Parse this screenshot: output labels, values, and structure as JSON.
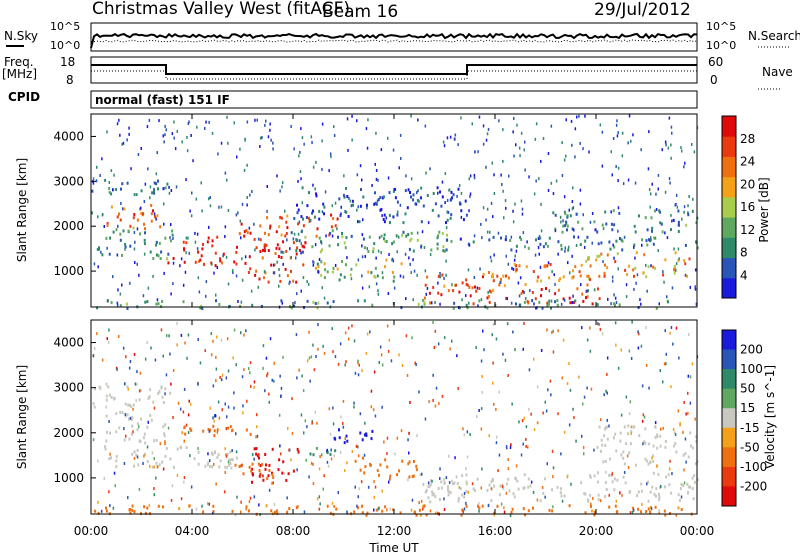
{
  "header": {
    "title": "Christmas Valley West (fitACF)",
    "beam": "Beam 16",
    "date": "29/Jul/2012"
  },
  "sky_panel": {
    "left_label": "N.Sky",
    "right_label": "N.Search",
    "left_ticks": [
      "10^5",
      "10^0"
    ],
    "right_ticks": [
      "10^5",
      "10^0"
    ]
  },
  "freq_panel": {
    "left_label_line1": "Freq.",
    "left_label_line2": "[MHz]",
    "right_label": "Nave",
    "left_ticks": [
      "18",
      "8"
    ],
    "right_ticks": [
      "60",
      "0"
    ]
  },
  "cpid_panel": {
    "label": "CPID",
    "mode_text": "normal (fast) 151 IF"
  },
  "colors": {
    "power_scale": [
      "#1a1adc",
      "#2a55b8",
      "#2f8a6a",
      "#5fa860",
      "#a8cc4c",
      "#f4a018",
      "#f07010",
      "#ec3a10",
      "#e00a0a"
    ],
    "velocity_scale": [
      "#1a1adc",
      "#2a55b8",
      "#2f8a6a",
      "#5fa860",
      "#c8c8c0",
      "#f4a018",
      "#f07010",
      "#ec3a10",
      "#e00a0a"
    ]
  },
  "chart_data": [
    {
      "type": "heatmap",
      "quantity": "power",
      "xlabel": "",
      "ylabel": "Slant Range [km]",
      "x_ticks": [
        "00:00",
        "04:00",
        "08:00",
        "12:00",
        "16:00",
        "20:00",
        "00:00"
      ],
      "y_ticks": [
        1000,
        2000,
        3000,
        4000
      ],
      "ylim": [
        200,
        4500
      ],
      "colorbar_label": "Power [dB]",
      "colorbar_ticks": [
        4,
        8,
        12,
        16,
        20,
        24,
        28
      ],
      "regions": [
        {
          "t0": 0.0,
          "t1": 3.0,
          "r0": 2700,
          "r1": 3100,
          "level": 0.25
        },
        {
          "t0": 0.6,
          "t1": 2.8,
          "r0": 1900,
          "r1": 2500,
          "level": 0.75
        },
        {
          "t0": 3.0,
          "t1": 8.5,
          "r0": 1150,
          "r1": 1800,
          "level": 0.9
        },
        {
          "t0": 5.8,
          "t1": 9.8,
          "r0": 1800,
          "r1": 2300,
          "level": 0.82
        },
        {
          "t0": 6.2,
          "t1": 8.3,
          "r0": 700,
          "r1": 1100,
          "level": 0.88
        },
        {
          "t0": 0.2,
          "t1": 3.2,
          "r0": 1300,
          "r1": 2000,
          "level": 0.3
        },
        {
          "t0": 7.5,
          "t1": 14.5,
          "r0": 1450,
          "r1": 1950,
          "level": 0.35
        },
        {
          "t0": 8.8,
          "t1": 12.5,
          "r0": 800,
          "r1": 1300,
          "level": 0.45
        },
        {
          "t0": 13.0,
          "t1": 16.5,
          "r0": 300,
          "r1": 950,
          "level": 0.78
        },
        {
          "t0": 15.5,
          "t1": 20.0,
          "r0": 700,
          "r1": 1200,
          "level": 0.72
        },
        {
          "t0": 17.0,
          "t1": 20.2,
          "r0": 300,
          "r1": 750,
          "level": 0.85
        },
        {
          "t0": 19.5,
          "t1": 23.8,
          "r0": 900,
          "r1": 1450,
          "level": 0.65
        },
        {
          "t0": 14.0,
          "t1": 24.0,
          "r0": 1500,
          "r1": 1800,
          "level": 0.25
        },
        {
          "t0": 18.0,
          "t1": 24.0,
          "r0": 1900,
          "r1": 2400,
          "level": 0.28
        },
        {
          "t0": 8.0,
          "t1": 15.0,
          "r0": 2100,
          "r1": 2900,
          "level": 0.15
        },
        {
          "t0": 0.0,
          "t1": 24.0,
          "r0": 200,
          "r1": 380,
          "level": 0.3
        }
      ]
    },
    {
      "type": "heatmap",
      "quantity": "velocity",
      "xlabel": "Time UT",
      "ylabel": "Slant Range [km]",
      "x_ticks": [
        "00:00",
        "04:00",
        "08:00",
        "12:00",
        "16:00",
        "20:00",
        "00:00"
      ],
      "y_ticks": [
        1000,
        2000,
        3000,
        4000
      ],
      "ylim": [
        200,
        4500
      ],
      "colorbar_label": "Velocity [m s^-1]",
      "colorbar_ticks": [
        200,
        100,
        50,
        15,
        -15,
        -50,
        -100,
        -200
      ],
      "regions": [
        {
          "t0": 0.0,
          "t1": 3.2,
          "r0": 2600,
          "r1": 3150,
          "v": 0
        },
        {
          "t0": 0.5,
          "t1": 3.0,
          "r0": 1800,
          "r1": 2500,
          "v": 0
        },
        {
          "t0": 0.5,
          "t1": 5.8,
          "r0": 1250,
          "r1": 1750,
          "v": 0
        },
        {
          "t0": 3.5,
          "t1": 6.5,
          "r0": 1900,
          "r1": 2200,
          "v": -60
        },
        {
          "t0": 6.3,
          "t1": 8.2,
          "r0": 900,
          "r1": 1700,
          "v": -180
        },
        {
          "t0": 5.5,
          "t1": 7.5,
          "r0": 1000,
          "r1": 1350,
          "v": -70
        },
        {
          "t0": 10.3,
          "t1": 13.0,
          "r0": 1050,
          "r1": 1500,
          "v": -75
        },
        {
          "t0": 9.6,
          "t1": 11.4,
          "r0": 1800,
          "r1": 2200,
          "v": 170
        },
        {
          "t0": 8.6,
          "t1": 10.0,
          "r0": 1400,
          "r1": 1700,
          "v": 40
        },
        {
          "t0": 13.0,
          "t1": 24.0,
          "r0": 500,
          "r1": 1150,
          "v": 0
        },
        {
          "t0": 20.0,
          "t1": 24.0,
          "r0": 1300,
          "r1": 2200,
          "v": 0
        },
        {
          "t0": 0.0,
          "t1": 24.0,
          "r0": 200,
          "r1": 420,
          "v": -60
        }
      ]
    }
  ]
}
